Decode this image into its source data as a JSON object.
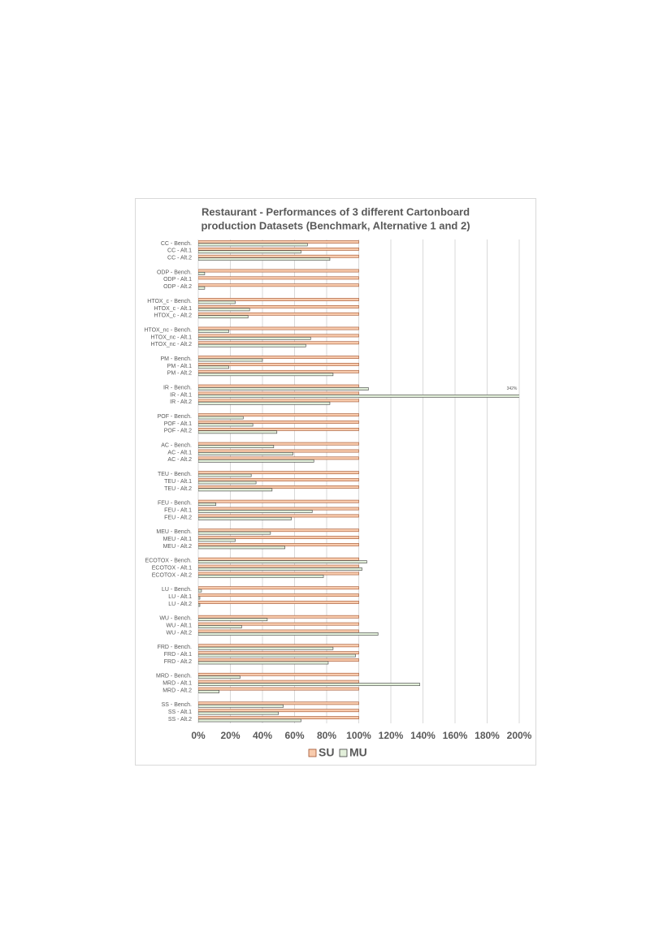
{
  "chart_data": {
    "type": "bar",
    "orientation": "horizontal",
    "title": [
      "Restaurant - Performances of 3 different Cartonboard",
      "production Datasets (Benchmark, Alternative 1 and 2)"
    ],
    "categories": [
      "CC - Bench.",
      "CC - Alt.1",
      "CC - Alt.2",
      "ODP - Bench.",
      "ODP - Alt.1",
      "ODP - Alt.2",
      "HTOX_c - Bench.",
      "HTOX_c - Alt.1",
      "HTOX_c - Alt.2",
      "HTOX_nc - Bench.",
      "HTOX_nc - Alt.1",
      "HTOX_nc - Alt.2",
      "PM - Bench.",
      "PM - Alt.1",
      "PM - Alt.2",
      "IR - Bench.",
      "IR - Alt.1",
      "IR - Alt.2",
      "POF - Bench.",
      "POF - Alt.1",
      "POF - Alt.2",
      "AC - Bench.",
      "AC - Alt.1",
      "AC - Alt.2",
      "TEU - Bench.",
      "TEU - Alt.1",
      "TEU - Alt.2",
      "FEU - Bench.",
      "FEU - Alt.1",
      "FEU - Alt.2",
      "MEU - Bench.",
      "MEU - Alt.1",
      "MEU - Alt.2",
      "ECOTOX - Bench.",
      "ECOTOX - Alt.1",
      "ECOTOX - Alt.2",
      "LU - Bench.",
      "LU - Alt.1",
      "LU - Alt.2",
      "WU - Bench.",
      "WU - Alt.1",
      "WU - Alt.2",
      "FRD - Bench.",
      "FRD - Alt.1",
      "FRD - Alt.2",
      "MRD - Bench.",
      "MRD - Alt.1",
      "MRD - Alt.2",
      "SS - Bench.",
      "SS - Alt.1",
      "SS - Alt.2"
    ],
    "series": [
      {
        "name": "SU",
        "color": "#f8cbad",
        "stroke": "#a0522d",
        "values": [
          100,
          100,
          100,
          100,
          100,
          100,
          100,
          100,
          100,
          100,
          100,
          100,
          100,
          100,
          100,
          100,
          100,
          100,
          100,
          100,
          100,
          100,
          100,
          100,
          100,
          100,
          100,
          100,
          100,
          100,
          100,
          100,
          100,
          100,
          100,
          100,
          100,
          100,
          100,
          100,
          100,
          100,
          100,
          100,
          100,
          100,
          100,
          100,
          100,
          100,
          100
        ]
      },
      {
        "name": "MU",
        "color": "#e2efda",
        "stroke": "#404040",
        "values": [
          68,
          64,
          82,
          4,
          0,
          4,
          23,
          32,
          31,
          19,
          70,
          67,
          40,
          19,
          84,
          106,
          342,
          82,
          28,
          34,
          49,
          47,
          59,
          72,
          33,
          36,
          46,
          11,
          71,
          58,
          45,
          23,
          54,
          105,
          102,
          78,
          2,
          1,
          1,
          43,
          27,
          112,
          84,
          98,
          81,
          26,
          138,
          13,
          53,
          50,
          64
        ],
        "value_labels": [
          null,
          null,
          null,
          null,
          null,
          null,
          null,
          null,
          null,
          null,
          null,
          null,
          null,
          null,
          null,
          null,
          "342%",
          null,
          null,
          null,
          null,
          null,
          null,
          null,
          null,
          null,
          null,
          null,
          null,
          null,
          null,
          null,
          null,
          null,
          null,
          null,
          null,
          null,
          null,
          null,
          null,
          null,
          null,
          null,
          null,
          null,
          null,
          null,
          null,
          null,
          null
        ]
      }
    ],
    "xlim": [
      0,
      200
    ],
    "xticks": [
      {
        "value": 0,
        "label": "0%"
      },
      {
        "value": 20,
        "label": "20%"
      },
      {
        "value": 40,
        "label": "40%"
      },
      {
        "value": 60,
        "label": "60%"
      },
      {
        "value": 80,
        "label": "80%"
      },
      {
        "value": 100,
        "label": "100%"
      },
      {
        "value": 120,
        "label": "120%"
      },
      {
        "value": 140,
        "label": "140%"
      },
      {
        "value": 160,
        "label": "160%"
      },
      {
        "value": 180,
        "label": "180%"
      },
      {
        "value": 200,
        "label": "200%"
      }
    ],
    "grid": true,
    "legend": "bottom"
  }
}
